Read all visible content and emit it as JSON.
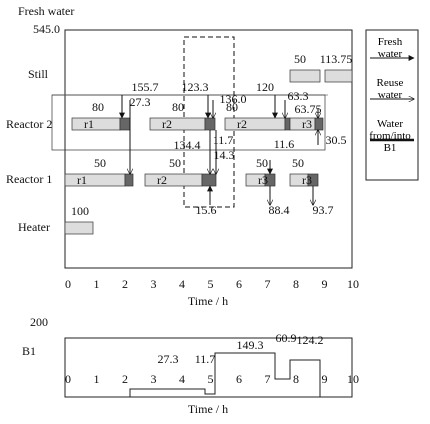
{
  "labels": {
    "fresh_water": "Fresh water",
    "fresh_total": "545.0",
    "still": "Still",
    "reactor2": "Reactor 2",
    "reactor1": "Reactor 1",
    "heater": "Heater",
    "b1": "B1",
    "b1_max": "200"
  },
  "x_ticks": [
    "0",
    "1",
    "2",
    "3",
    "4",
    "5",
    "6",
    "7",
    "8",
    "9",
    "10"
  ],
  "x_axis_title": "Time / h",
  "tasks": [
    {
      "name": "r1",
      "amount": "80"
    },
    {
      "name": "r2",
      "amount": "80"
    },
    {
      "name": "r2",
      "amount": "80"
    },
    {
      "name": "r3"
    },
    {
      "name": "r1",
      "amount": "50"
    },
    {
      "name": "r2",
      "amount": "50"
    },
    {
      "name": "r3",
      "amount": "50"
    },
    {
      "name": "r3",
      "amount": "50"
    },
    {
      "amount": "100"
    },
    {
      "amount": "50"
    },
    {
      "amount": "113.75"
    }
  ],
  "flows": [
    "155.7",
    "27.3",
    "123.3",
    "136.0",
    "120",
    "63.3",
    "63.75",
    "11.7",
    "134.4",
    "14.3",
    "11.6",
    "30.5",
    "15.6",
    "88.4",
    "93.7"
  ],
  "b1_levels": [
    "27.3",
    "11.7",
    "149.3",
    "60.9",
    "124.2"
  ],
  "legend": [
    "Fresh water",
    "Reuse water",
    "Water from/into B1"
  ]
}
